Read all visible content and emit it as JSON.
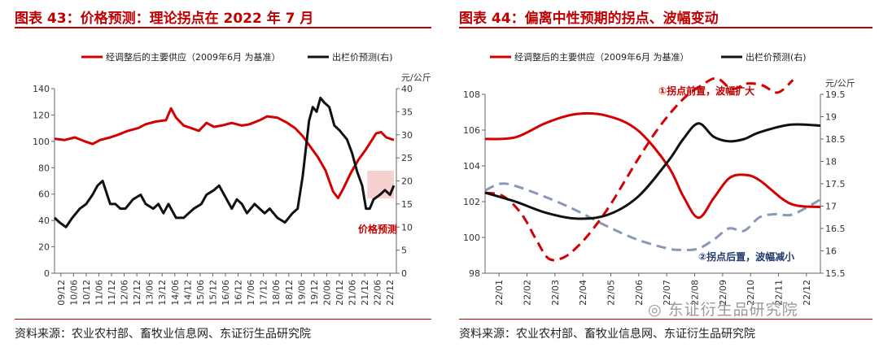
{
  "left_title": "图表 43：价格预测：理论拐点在 2022 年 7 月",
  "right_title": "图表 44：偏离中性预期的拐点、波幅变动",
  "left_source": "资料来源：农业农村部、畜牧业信息网、东证衍生品研究院",
  "right_source": "资料来源：农业农村部、畜牧业信息网、东证衍生品研究院",
  "watermark": "东证衍生品研究院",
  "colors": {
    "red": "#d40000",
    "black": "#111111",
    "gray": "#8898b6",
    "box": "#f6c8c8"
  },
  "chart_data": [
    {
      "type": "line",
      "legend": [
        "经调整后的主要供应（2009年6月 为基准）",
        "出栏价预测(右)"
      ],
      "legend_position": "top",
      "y2_unit": "元/公斤",
      "ylim": [
        0,
        140
      ],
      "y_ticks": [
        "0",
        "20",
        "40",
        "60",
        "80",
        "100",
        "120",
        "140"
      ],
      "y2lim": [
        0,
        40
      ],
      "y2_ticks": [
        "0",
        "5",
        "10",
        "15",
        "20",
        "25",
        "30",
        "35",
        "40"
      ],
      "x_range": [
        2009.5,
        2023.0
      ],
      "x_ticks": [
        "09/12",
        "10/06",
        "10/12",
        "11/06",
        "11/12",
        "12/06",
        "12/12",
        "13/06",
        "13/12",
        "14/06",
        "14/12",
        "15/06",
        "15/12",
        "16/06",
        "16/12",
        "17/06",
        "17/12",
        "18/06",
        "18/12",
        "19/06",
        "19/12",
        "20/06",
        "20/12",
        "21/06",
        "21/12",
        "22/06",
        "22/12"
      ],
      "annotation": "价格预测",
      "highlight_box": {
        "x": [
          2021.85,
          2022.9
        ],
        "y2": [
          16.2,
          22.2
        ]
      },
      "series": [
        {
          "name": "经调整后的主要供应（2009年6月 为基准）",
          "axis": "left",
          "x": [
            2009.5,
            2009.9,
            2010.3,
            2010.7,
            2011.0,
            2011.3,
            2011.7,
            2012.0,
            2012.4,
            2012.8,
            2013.1,
            2013.5,
            2013.9,
            2014.1,
            2014.3,
            2014.6,
            2014.9,
            2015.2,
            2015.5,
            2015.8,
            2016.1,
            2016.5,
            2016.9,
            2017.2,
            2017.6,
            2017.9,
            2018.3,
            2018.7,
            2019.0,
            2019.3,
            2019.6,
            2019.9,
            2020.2,
            2020.5,
            2020.7,
            2020.9,
            2021.2,
            2021.5,
            2021.8,
            2022.0,
            2022.2,
            2022.4,
            2022.6,
            2022.9
          ],
          "y": [
            102,
            101,
            103,
            100,
            98,
            101,
            103,
            105,
            108,
            110,
            113,
            115,
            116,
            125,
            118,
            112,
            110,
            108,
            114,
            111,
            112,
            114,
            112,
            113,
            116,
            119,
            118,
            114,
            110,
            104,
            96,
            88,
            78,
            62,
            57,
            64,
            76,
            86,
            94,
            100,
            106,
            107,
            103,
            101
          ]
        },
        {
          "name": "出栏价预测(右)",
          "axis": "right",
          "x": [
            2009.5,
            2009.7,
            2009.95,
            2010.2,
            2010.5,
            2010.75,
            2011.0,
            2011.2,
            2011.4,
            2011.7,
            2011.9,
            2012.1,
            2012.3,
            2012.6,
            2012.9,
            2013.1,
            2013.4,
            2013.6,
            2013.8,
            2014.0,
            2014.3,
            2014.6,
            2014.8,
            2015.0,
            2015.3,
            2015.5,
            2015.8,
            2016.0,
            2016.2,
            2016.5,
            2016.7,
            2016.9,
            2017.1,
            2017.4,
            2017.6,
            2017.8,
            2018.0,
            2018.3,
            2018.6,
            2018.9,
            2019.1,
            2019.3,
            2019.55,
            2019.7,
            2019.85,
            2020.0,
            2020.15,
            2020.35,
            2020.55,
            2020.75,
            2020.9,
            2021.05,
            2021.25,
            2021.45,
            2021.65,
            2021.8,
            2021.95,
            2022.1,
            2022.35,
            2022.55,
            2022.75,
            2022.9
          ],
          "y": [
            12,
            11,
            10,
            12,
            14,
            15,
            17,
            19,
            20,
            15,
            15,
            14,
            14,
            16,
            17,
            15,
            14,
            15,
            13,
            15,
            12,
            12,
            13,
            14,
            15,
            17,
            18,
            19,
            17,
            14,
            16,
            15,
            13,
            15,
            14,
            13,
            14,
            12,
            11,
            13,
            14,
            21,
            33,
            36,
            35,
            38,
            37,
            36,
            32,
            31,
            30,
            29,
            26,
            22,
            19,
            14,
            14,
            16,
            17,
            18,
            17,
            19
          ]
        }
      ]
    },
    {
      "type": "line",
      "legend": [
        "经调整后的主要供应（2009年6月 为基准）",
        "出栏价预测(右)"
      ],
      "legend_position": "top",
      "y2_unit": "元/公斤",
      "ylim": [
        98,
        108
      ],
      "y_ticks": [
        "98",
        "100",
        "102",
        "104",
        "106",
        "108"
      ],
      "y2lim": [
        15.5,
        19.5
      ],
      "y2_ticks": [
        "15.5",
        "16",
        "16.5",
        "17",
        "17.5",
        "18",
        "18.5",
        "19",
        "19.5"
      ],
      "x_range": [
        1,
        12
      ],
      "x_ticks": [
        "22/01",
        "22/02",
        "22/03",
        "22/04",
        "22/05",
        "22/06",
        "22/07",
        "22/08",
        "22/09",
        "22/10",
        "22/11",
        "22/12"
      ],
      "annotations": [
        "①拐点前置，波幅扩大",
        "②拐点后置，波幅减小"
      ],
      "series": [
        {
          "name": "经调整后的主要供应（2009年6月 为基准）",
          "axis": "left",
          "style": "solid",
          "x": [
            1,
            2,
            3,
            4,
            5,
            6,
            7,
            7.5,
            8,
            8.5,
            9,
            9.5,
            10,
            11,
            12
          ],
          "y": [
            105.5,
            105.6,
            106.4,
            106.9,
            106.8,
            106.0,
            104.0,
            102.3,
            101.1,
            102.2,
            103.3,
            103.5,
            103.2,
            101.9,
            101.7
          ]
        },
        {
          "name": "",
          "axis": "left",
          "style": "dashed",
          "x": [
            1,
            1.6,
            2.2,
            2.7,
            3.1,
            3.6,
            4.1,
            4.6,
            5.1,
            5.6,
            6.1,
            6.6,
            7.1,
            7.6,
            8.1,
            8.6,
            9.1,
            9.6,
            10.1,
            10.6,
            11.1
          ],
          "y": [
            102.5,
            102.3,
            101.3,
            99.8,
            98.8,
            98.9,
            99.6,
            100.6,
            101.8,
            103.2,
            104.6,
            105.9,
            107.0,
            107.9,
            108.5,
            108.9,
            108.3,
            108.6,
            108.5,
            108.1,
            108.8
          ]
        },
        {
          "name": "出栏价预测(右)",
          "axis": "right",
          "style": "solid",
          "x": [
            1,
            2,
            3,
            4,
            5,
            6,
            7,
            7.5,
            8,
            8.5,
            9,
            9.5,
            10,
            11,
            12
          ],
          "y": [
            17.3,
            17.1,
            16.85,
            16.72,
            16.8,
            17.2,
            18.0,
            18.5,
            18.85,
            18.55,
            18.45,
            18.5,
            18.65,
            18.82,
            18.8
          ]
        },
        {
          "name": "",
          "axis": "right",
          "style": "dashed",
          "x": [
            1,
            1.5,
            2,
            3,
            4,
            5,
            6,
            7,
            7.5,
            8,
            8.5,
            9,
            9.5,
            10,
            10.5,
            11,
            11.5,
            12
          ],
          "y": [
            17.35,
            17.5,
            17.45,
            17.2,
            16.9,
            16.55,
            16.25,
            16.05,
            16.02,
            16.05,
            16.25,
            16.5,
            16.45,
            16.75,
            16.82,
            16.8,
            16.95,
            17.15
          ]
        }
      ]
    }
  ]
}
